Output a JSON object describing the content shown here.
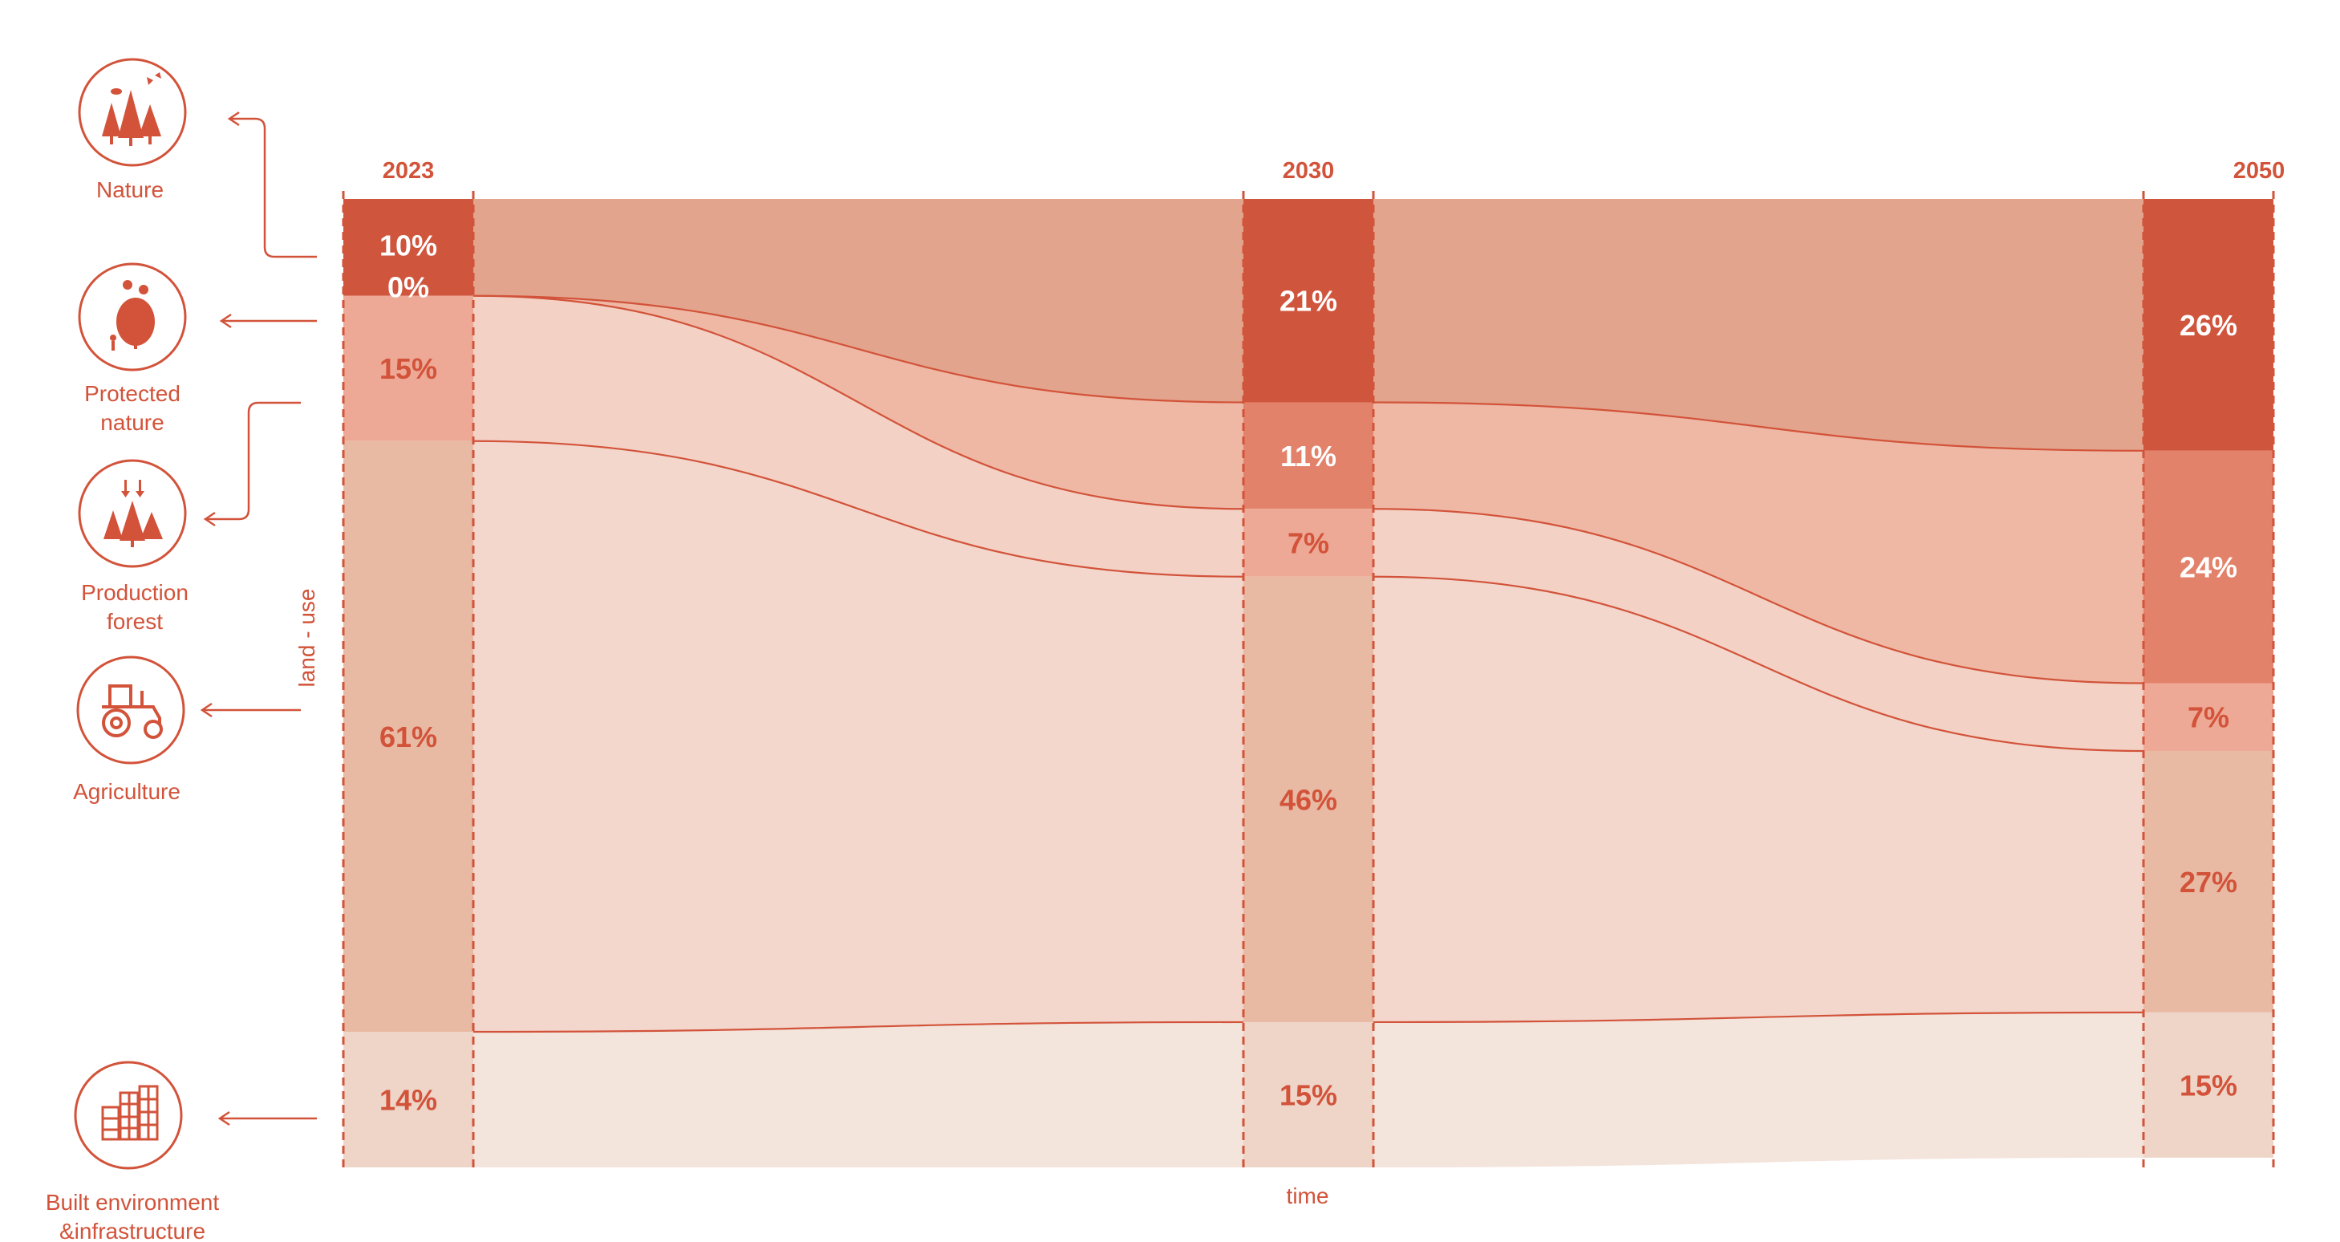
{
  "chart_data": {
    "type": "area",
    "title": "",
    "xlabel": "time",
    "ylabel": "land - use",
    "x": [
      "2023",
      "2030",
      "2050"
    ],
    "ylim": [
      0,
      100
    ],
    "series": [
      {
        "name": "Nature",
        "key": "nature",
        "values": [
          10,
          21,
          26
        ],
        "labels": [
          "10%",
          "21%",
          "26%"
        ],
        "color": "#d0553d",
        "ribbon": "#e3a48d"
      },
      {
        "name": "Protected\nnature",
        "key": "protected",
        "values": [
          0,
          11,
          24
        ],
        "labels": [
          "0%",
          "11%",
          "24%"
        ],
        "color": "#e3826a",
        "ribbon": "#efb8a5"
      },
      {
        "name": "Production\nforest",
        "key": "forest",
        "values": [
          15,
          7,
          7
        ],
        "labels": [
          "15%",
          "7%",
          "7%"
        ],
        "color": "#eda996",
        "ribbon": "#f3d1c5"
      },
      {
        "name": "Agriculture",
        "key": "agriculture",
        "values": [
          61,
          46,
          27
        ],
        "labels": [
          "61%",
          "46%",
          "27%"
        ],
        "color": "#e8b9a3",
        "ribbon": "#f4d7cc"
      },
      {
        "name": "Built environment\n&infrastructure",
        "key": "built",
        "values": [
          14,
          15,
          15
        ],
        "labels": [
          "14%",
          "15%",
          "15%"
        ],
        "color": "#eed5c8",
        "ribbon": "#f3e4dc"
      }
    ],
    "legend": "left",
    "grid": false
  },
  "icons": [
    {
      "key": "nature",
      "icon": "trees-bird-icon"
    },
    {
      "key": "protected",
      "icon": "protected-bush-icon"
    },
    {
      "key": "forest",
      "icon": "production-forest-icon"
    },
    {
      "key": "agriculture",
      "icon": "tractor-icon"
    },
    {
      "key": "built",
      "icon": "building-icon"
    }
  ],
  "colors": {
    "accent": "#d2533a",
    "outline": "#d2533a"
  }
}
